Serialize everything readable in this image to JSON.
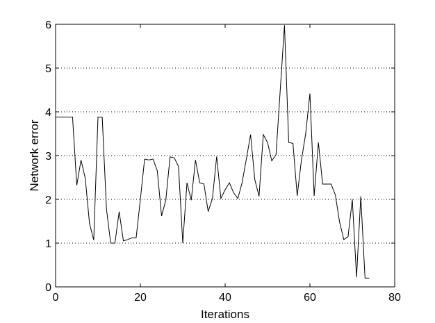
{
  "chart_data": {
    "type": "line",
    "xlabel": "Iterations",
    "ylabel": "Network error",
    "xlim": [
      0,
      80
    ],
    "ylim": [
      0,
      6
    ],
    "xticks": [
      0,
      20,
      40,
      60,
      80
    ],
    "yticks": [
      0,
      1,
      2,
      3,
      4,
      5,
      6
    ],
    "grid": "horizontal dotted",
    "colors": {
      "line": "#000000",
      "grid": "#000000",
      "background": "#ffffff"
    },
    "series": [
      {
        "x": [
          0,
          1,
          2,
          3,
          4,
          5,
          6,
          7,
          8,
          9,
          10,
          11,
          12,
          13,
          14,
          15,
          16,
          17,
          18,
          19,
          20,
          21,
          22,
          23,
          24,
          25,
          26,
          27,
          28,
          29,
          30,
          31,
          32,
          33,
          34,
          35,
          36,
          37,
          38,
          39,
          40,
          41,
          42,
          43,
          44,
          45,
          46,
          47,
          48,
          49,
          50,
          51,
          52,
          53,
          54,
          55,
          56,
          57,
          58,
          59,
          60,
          61,
          62,
          63,
          64,
          65,
          66,
          67,
          68,
          69,
          70,
          71,
          72,
          73,
          74
        ],
        "y": [
          3.88,
          3.88,
          3.88,
          3.88,
          3.88,
          2.32,
          2.9,
          2.48,
          1.45,
          1.07,
          3.88,
          3.88,
          1.78,
          1.0,
          1.0,
          1.72,
          1.05,
          1.08,
          1.12,
          1.12,
          2.0,
          2.92,
          2.9,
          2.92,
          2.65,
          1.62,
          1.98,
          2.97,
          2.95,
          2.75,
          1.0,
          2.38,
          1.98,
          2.9,
          2.38,
          2.35,
          1.72,
          2.02,
          2.98,
          2.02,
          2.22,
          2.38,
          2.15,
          2.02,
          2.38,
          2.92,
          3.48,
          2.45,
          2.07,
          3.48,
          3.3,
          2.88,
          3.02,
          4.5,
          5.98,
          3.3,
          3.28,
          2.08,
          2.9,
          3.5,
          4.42,
          2.08,
          3.3,
          2.35,
          2.35,
          2.35,
          2.1,
          1.48,
          1.08,
          1.15,
          2.0,
          0.22,
          2.07,
          0.2,
          0.2
        ]
      }
    ]
  }
}
